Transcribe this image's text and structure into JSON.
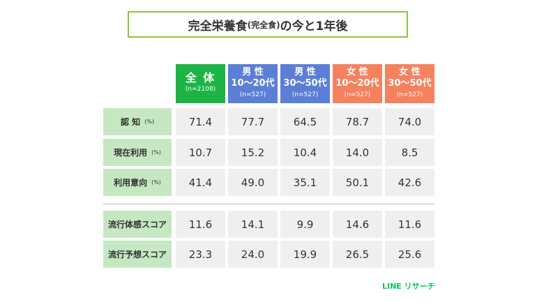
{
  "title": {
    "main": "完全栄養食",
    "paren": "(完全食)",
    "rest": "の今と1年後"
  },
  "colors": {
    "total": "#1db446",
    "male": "#5b7fd6",
    "female": "#f5825f",
    "label_bg": "#c5e8c2",
    "cell_bg": "#efefef",
    "frame": "#8cc63f"
  },
  "chart_data": {
    "type": "table",
    "columns": [
      {
        "l1": "全 体",
        "l2": "",
        "n": "(n=2108)",
        "group": "total"
      },
      {
        "l1": "男 性",
        "l2": "10〜20代",
        "n": "(n=527)",
        "group": "male"
      },
      {
        "l1": "男 性",
        "l2": "30〜50代",
        "n": "(n=527)",
        "group": "male"
      },
      {
        "l1": "女 性",
        "l2": "10〜20代",
        "n": "(n=527)",
        "group": "female"
      },
      {
        "l1": "女 性",
        "l2": "30〜50代",
        "n": "(n=527)",
        "group": "female"
      }
    ],
    "rows": [
      {
        "label": "認 知",
        "unit": "(%)",
        "values": [
          "71.4",
          "77.7",
          "64.5",
          "78.7",
          "74.0"
        ]
      },
      {
        "label": "現在利用",
        "unit": "(%)",
        "values": [
          "10.7",
          "15.2",
          "10.4",
          "14.0",
          "8.5"
        ]
      },
      {
        "label": "利用意向",
        "unit": "(%)",
        "values": [
          "41.4",
          "49.0",
          "35.1",
          "50.1",
          "42.6"
        ]
      },
      {
        "label": "流行体感スコア",
        "unit": "",
        "values": [
          "11.6",
          "14.1",
          "9.9",
          "14.6",
          "11.6"
        ]
      },
      {
        "label": "流行予想スコア",
        "unit": "",
        "values": [
          "23.3",
          "24.0",
          "19.9",
          "26.5",
          "25.6"
        ]
      }
    ]
  },
  "brand": "LINE リサーチ"
}
